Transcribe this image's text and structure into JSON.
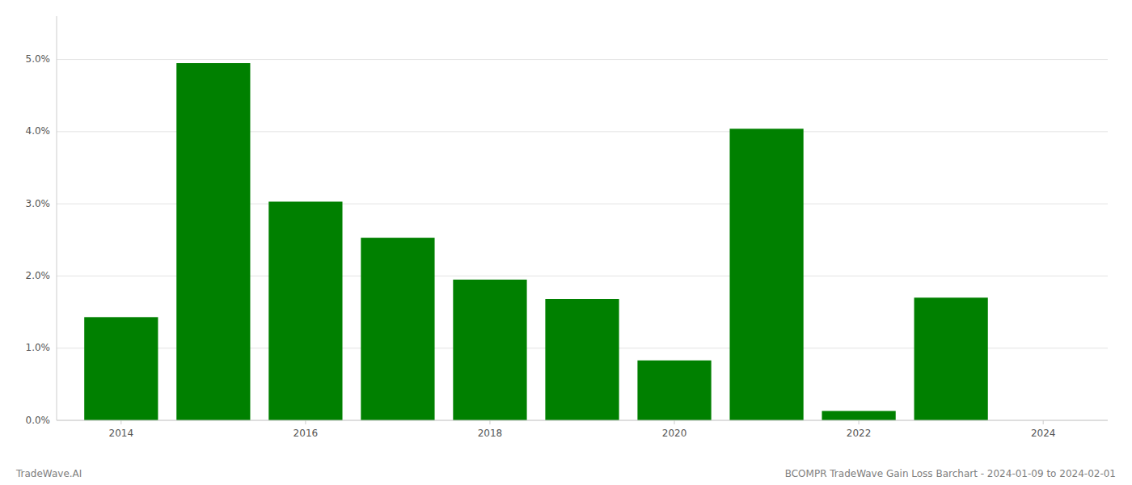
{
  "chart_data": {
    "type": "bar",
    "x": [
      2014,
      2015,
      2016,
      2017,
      2018,
      2019,
      2020,
      2021,
      2022,
      2023
    ],
    "values": [
      0.0143,
      0.0495,
      0.0303,
      0.0253,
      0.0195,
      0.0168,
      0.0083,
      0.0404,
      0.0013,
      0.017
    ],
    "color": "#008000",
    "xlim": [
      2013.3,
      2024.7
    ],
    "xticks": [
      2014,
      2016,
      2018,
      2020,
      2022,
      2024
    ],
    "ylim": [
      0,
      0.056
    ],
    "yticks": [
      {
        "value": 0.0,
        "label": "0.0%"
      },
      {
        "value": 0.01,
        "label": "1.0%"
      },
      {
        "value": 0.02,
        "label": "2.0%"
      },
      {
        "value": 0.03,
        "label": "3.0%"
      },
      {
        "value": 0.04,
        "label": "4.0%"
      },
      {
        "value": 0.05,
        "label": "5.0%"
      }
    ],
    "grid": true,
    "annotations": [
      "TradeWave.AI",
      "BCOMPR TradeWave Gain Loss Barchart - 2024-01-09 to 2024-02-01"
    ]
  }
}
